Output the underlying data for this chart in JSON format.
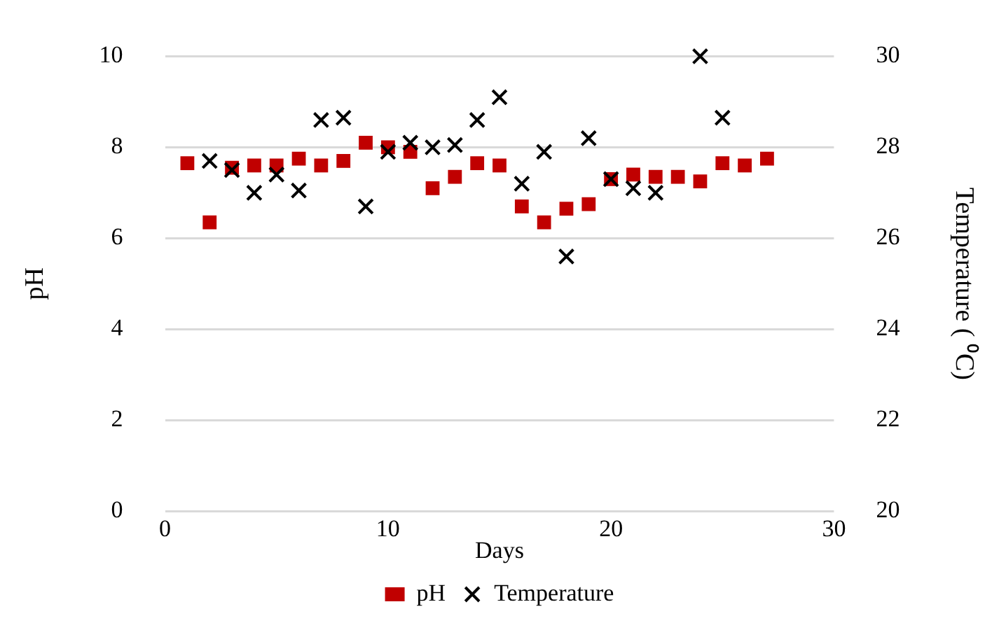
{
  "chart_data": {
    "type": "scatter",
    "xlabel": "Days",
    "ylabel": "pH",
    "y2label": "Temperature ( ⁰C)",
    "x": [
      1,
      2,
      3,
      4,
      5,
      6,
      7,
      8,
      9,
      10,
      11,
      12,
      13,
      14,
      15,
      16,
      17,
      18,
      19,
      20,
      21,
      22,
      23,
      24,
      25,
      26,
      27
    ],
    "series": [
      {
        "name": "pH",
        "color": "#c00000",
        "marker": "square",
        "values": [
          7.65,
          6.35,
          7.55,
          7.6,
          7.6,
          7.75,
          7.6,
          7.7,
          8.1,
          8.0,
          7.9,
          7.1,
          7.35,
          7.65,
          7.6,
          6.7,
          6.35,
          6.65,
          6.75,
          7.3,
          7.4,
          7.35,
          7.35,
          7.25,
          7.65,
          7.6,
          7.75
        ]
      },
      {
        "name": "Temperature",
        "color": "#000000",
        "marker": "cross",
        "axis": "y2",
        "values": [
          null,
          27.7,
          27.5,
          27.0,
          27.4,
          27.05,
          28.6,
          28.65,
          26.7,
          27.9,
          28.1,
          28.0,
          28.05,
          28.6,
          29.1,
          27.2,
          27.9,
          25.6,
          28.2,
          27.3,
          27.1,
          27.0,
          null,
          30.0,
          28.65,
          null,
          null
        ]
      }
    ],
    "xlim": [
      0,
      30
    ],
    "xticks": [
      0,
      10,
      20,
      30
    ],
    "ylim": [
      0,
      10
    ],
    "yticks": [
      0,
      2,
      4,
      6,
      8,
      10
    ],
    "y2lim": [
      20,
      30
    ],
    "y2ticks": [
      20,
      22,
      24,
      26,
      28,
      30
    ],
    "grid": "y",
    "legend": "bottom"
  }
}
